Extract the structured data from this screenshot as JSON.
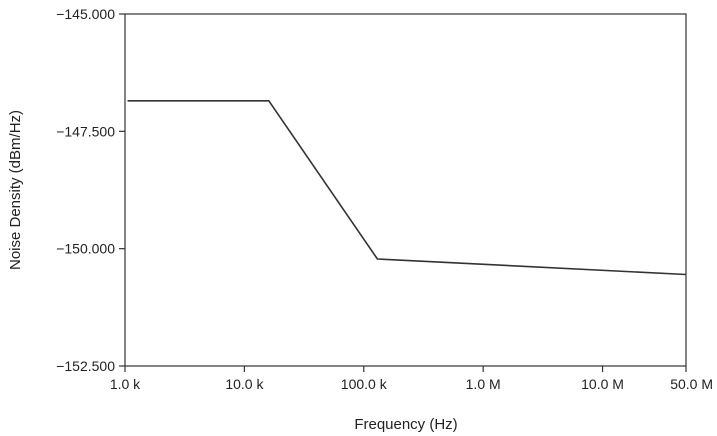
{
  "chart_data": {
    "type": "line",
    "title": "",
    "xlabel": "Frequency (Hz)",
    "ylabel": "Noise Density (dBm/Hz)",
    "xscale": "log",
    "xlim": [
      1000,
      50000000
    ],
    "ylim": [
      -152.5,
      -145.0
    ],
    "grid": false,
    "x_ticks": [
      {
        "value": 1000,
        "label": "1.0 k"
      },
      {
        "value": 10000,
        "label": "10.0 k"
      },
      {
        "value": 100000,
        "label": "100.0 k"
      },
      {
        "value": 1000000,
        "label": "1.0 M"
      },
      {
        "value": 10000000,
        "label": "10.0 M"
      },
      {
        "value": 50000000,
        "label": "50.0 M"
      }
    ],
    "y_ticks": [
      {
        "value": -145.0,
        "label": "−145.000"
      },
      {
        "value": -147.5,
        "label": "−147.500"
      },
      {
        "value": -150.0,
        "label": "−150.000"
      },
      {
        "value": -152.5,
        "label": "−152.500"
      }
    ],
    "series": [
      {
        "color": "#333333",
        "x": [
          1050,
          16000,
          130000,
          50000000
        ],
        "y": [
          -146.85,
          -146.85,
          -150.22,
          -150.55
        ]
      }
    ]
  }
}
